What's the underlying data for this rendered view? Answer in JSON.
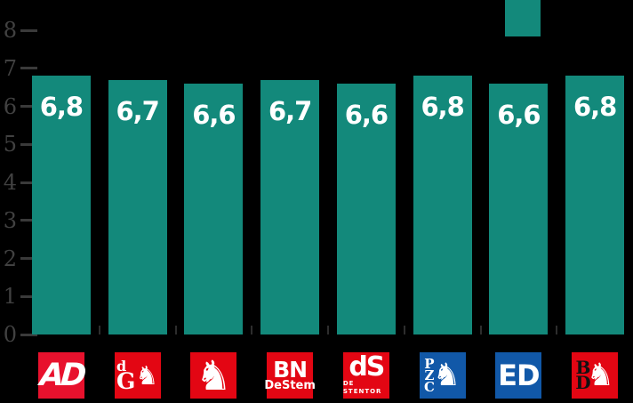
{
  "chart_data": {
    "type": "bar",
    "categories": [
      "AD",
      "de Gelderlander",
      "Tubantia",
      "BN DeStem",
      "de Stentor",
      "PZC",
      "ED",
      "BD"
    ],
    "values": [
      6.8,
      6.7,
      6.6,
      6.7,
      6.6,
      6.8,
      6.6,
      6.8
    ],
    "value_labels": [
      "6,8",
      "6,7",
      "6,6",
      "6,7",
      "6,6",
      "6,8",
      "6,6",
      "6,8"
    ],
    "ylim": [
      0,
      8
    ],
    "yticks": [
      0,
      1,
      2,
      3,
      4,
      5,
      6,
      7,
      8
    ],
    "ytick_labels": [
      "0",
      "1",
      "2",
      "3",
      "4",
      "5",
      "6",
      "7",
      "8"
    ],
    "grid": false,
    "legend_position": "top-right",
    "bar_color": "#13897B",
    "background_color": "#000000"
  },
  "legend": {
    "swatch_color": "#13897B"
  },
  "colors": {
    "background": "#000000",
    "bar": "#13897B",
    "axis_text": "#414141",
    "axis_tick": "#3a3a3a",
    "category_tick": "#2d2d2d",
    "value_label": "#ffffff",
    "ad_red": "#e8112d",
    "brand_red": "#e30613",
    "brand_blue": "#1158a8",
    "bd_letter_black": "#121212"
  },
  "icons": {
    "lion": "♞",
    "horse": "♞"
  },
  "logos": [
    {
      "kind": "ad",
      "name": "AD",
      "bg": "#e8112d",
      "fg": "#ffffff",
      "main": "AD"
    },
    {
      "kind": "dg",
      "name": "de Gelderlander",
      "bg": "#e30613",
      "fg": "#ffffff",
      "top": "d",
      "bottom": "G",
      "figure": "lion"
    },
    {
      "kind": "tubantia",
      "name": "Tubantia",
      "bg": "#e30613",
      "fg": "#ffffff",
      "figure": "horse"
    },
    {
      "kind": "bn",
      "name": "BN DeStem",
      "bg": "#e30613",
      "fg": "#ffffff",
      "main": "BN",
      "sub": "DeStem"
    },
    {
      "kind": "ds",
      "name": "de Stentor",
      "bg": "#e30613",
      "fg": "#ffffff",
      "main": "dS",
      "sub": "DE STENTOR"
    },
    {
      "kind": "pzc",
      "name": "PZC",
      "bg": "#1158a8",
      "fg": "#ffffff",
      "stack": [
        "P",
        "Z",
        "C"
      ],
      "figure": "lion"
    },
    {
      "kind": "ed",
      "name": "ED",
      "bg": "#1158a8",
      "fg": "#ffffff",
      "main": "ED"
    },
    {
      "kind": "bd",
      "name": "BD",
      "bg": "#e30613",
      "fg": "#121212",
      "stack": [
        "B",
        "D"
      ],
      "figure": "lion",
      "figure_color": "#ffffff"
    }
  ]
}
